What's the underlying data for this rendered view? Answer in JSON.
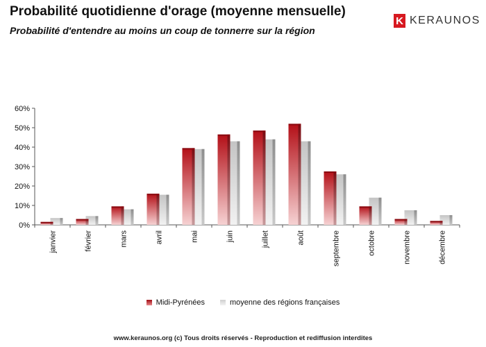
{
  "chart_data": {
    "type": "bar",
    "title": "Probabilité quotidienne d'orage (moyenne mensuelle)",
    "subtitle": "Probabilité d'entendre au moins un coup de tonnerre sur la région",
    "categories": [
      "janvier",
      "février",
      "mars",
      "avril",
      "mai",
      "juin",
      "juillet",
      "août",
      "septembre",
      "octobre",
      "novembre",
      "décembre"
    ],
    "series": [
      {
        "name": "Midi-Pyrénées",
        "values": [
          1.5,
          3,
          9.5,
          16,
          39.5,
          46.5,
          48.5,
          52,
          27.5,
          9.5,
          3,
          2
        ],
        "color": "#c8141c"
      },
      {
        "name": "moyenne des régions françaises",
        "values": [
          3.5,
          4.5,
          8,
          15.5,
          39,
          43,
          44,
          43,
          26,
          14,
          7.5,
          5
        ],
        "color": "#bdbdbd"
      }
    ],
    "ylim": [
      0,
      60
    ],
    "yticks": [
      0,
      10,
      20,
      30,
      40,
      50,
      60
    ],
    "ytick_labels": [
      "0%",
      "10%",
      "20%",
      "30%",
      "40%",
      "50%",
      "60%"
    ],
    "grid": false,
    "legend": "bottom"
  },
  "logo": {
    "mark": "K",
    "text": "KERAUNOS"
  },
  "footer": "www.keraunos.org  (c) Tous droits réservés - Reproduction et rediffusion interdites"
}
